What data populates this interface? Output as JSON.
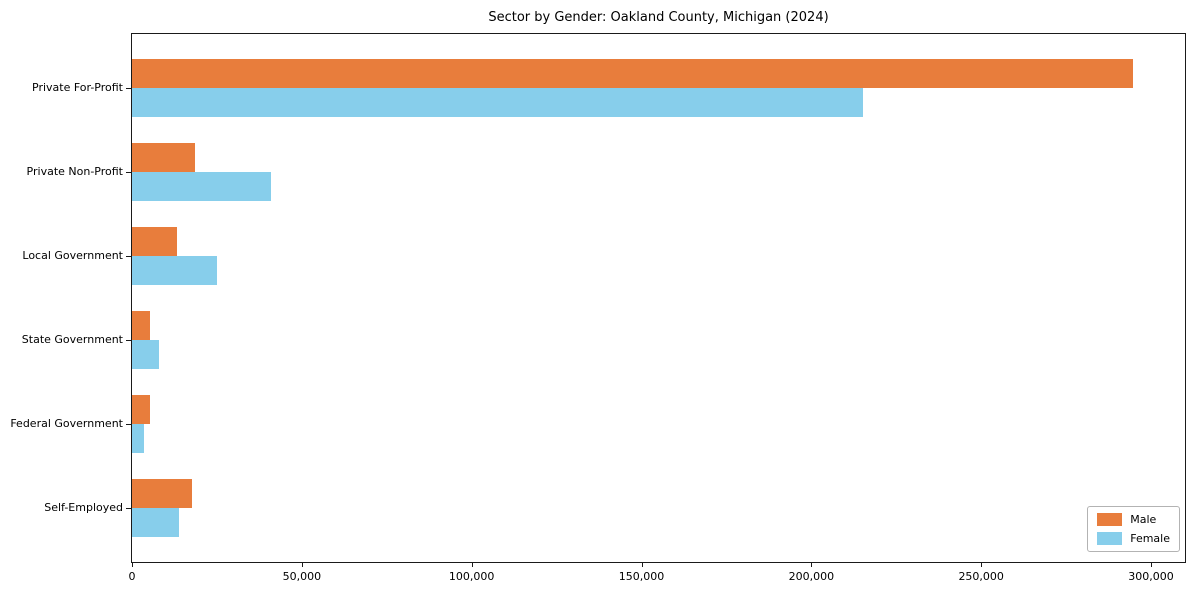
{
  "chart_data": {
    "type": "bar",
    "orientation": "horizontal",
    "title": "Sector by Gender: Oakland County, Michigan (2024)",
    "categories": [
      "Private For-Profit",
      "Private Non-Profit",
      "Local Government",
      "State Government",
      "Federal Government",
      "Self-Employed"
    ],
    "series": [
      {
        "name": "Male",
        "color": "#E87D3C",
        "values": [
          294800,
          18500,
          13200,
          5300,
          5300,
          17600
        ]
      },
      {
        "name": "Female",
        "color": "#87CEEB",
        "values": [
          215200,
          41000,
          25000,
          8000,
          3500,
          13700
        ]
      }
    ],
    "xlabel": "",
    "ylabel": "",
    "xlim": [
      0,
      310000
    ],
    "xticks": [
      0,
      50000,
      100000,
      150000,
      200000,
      250000,
      300000
    ],
    "xtick_labels": [
      "0",
      "50,000",
      "100,000",
      "150,000",
      "200,000",
      "250,000",
      "300,000"
    ],
    "grid": false,
    "legend_position": "lower right",
    "axis_color": "#1a1a1a"
  }
}
